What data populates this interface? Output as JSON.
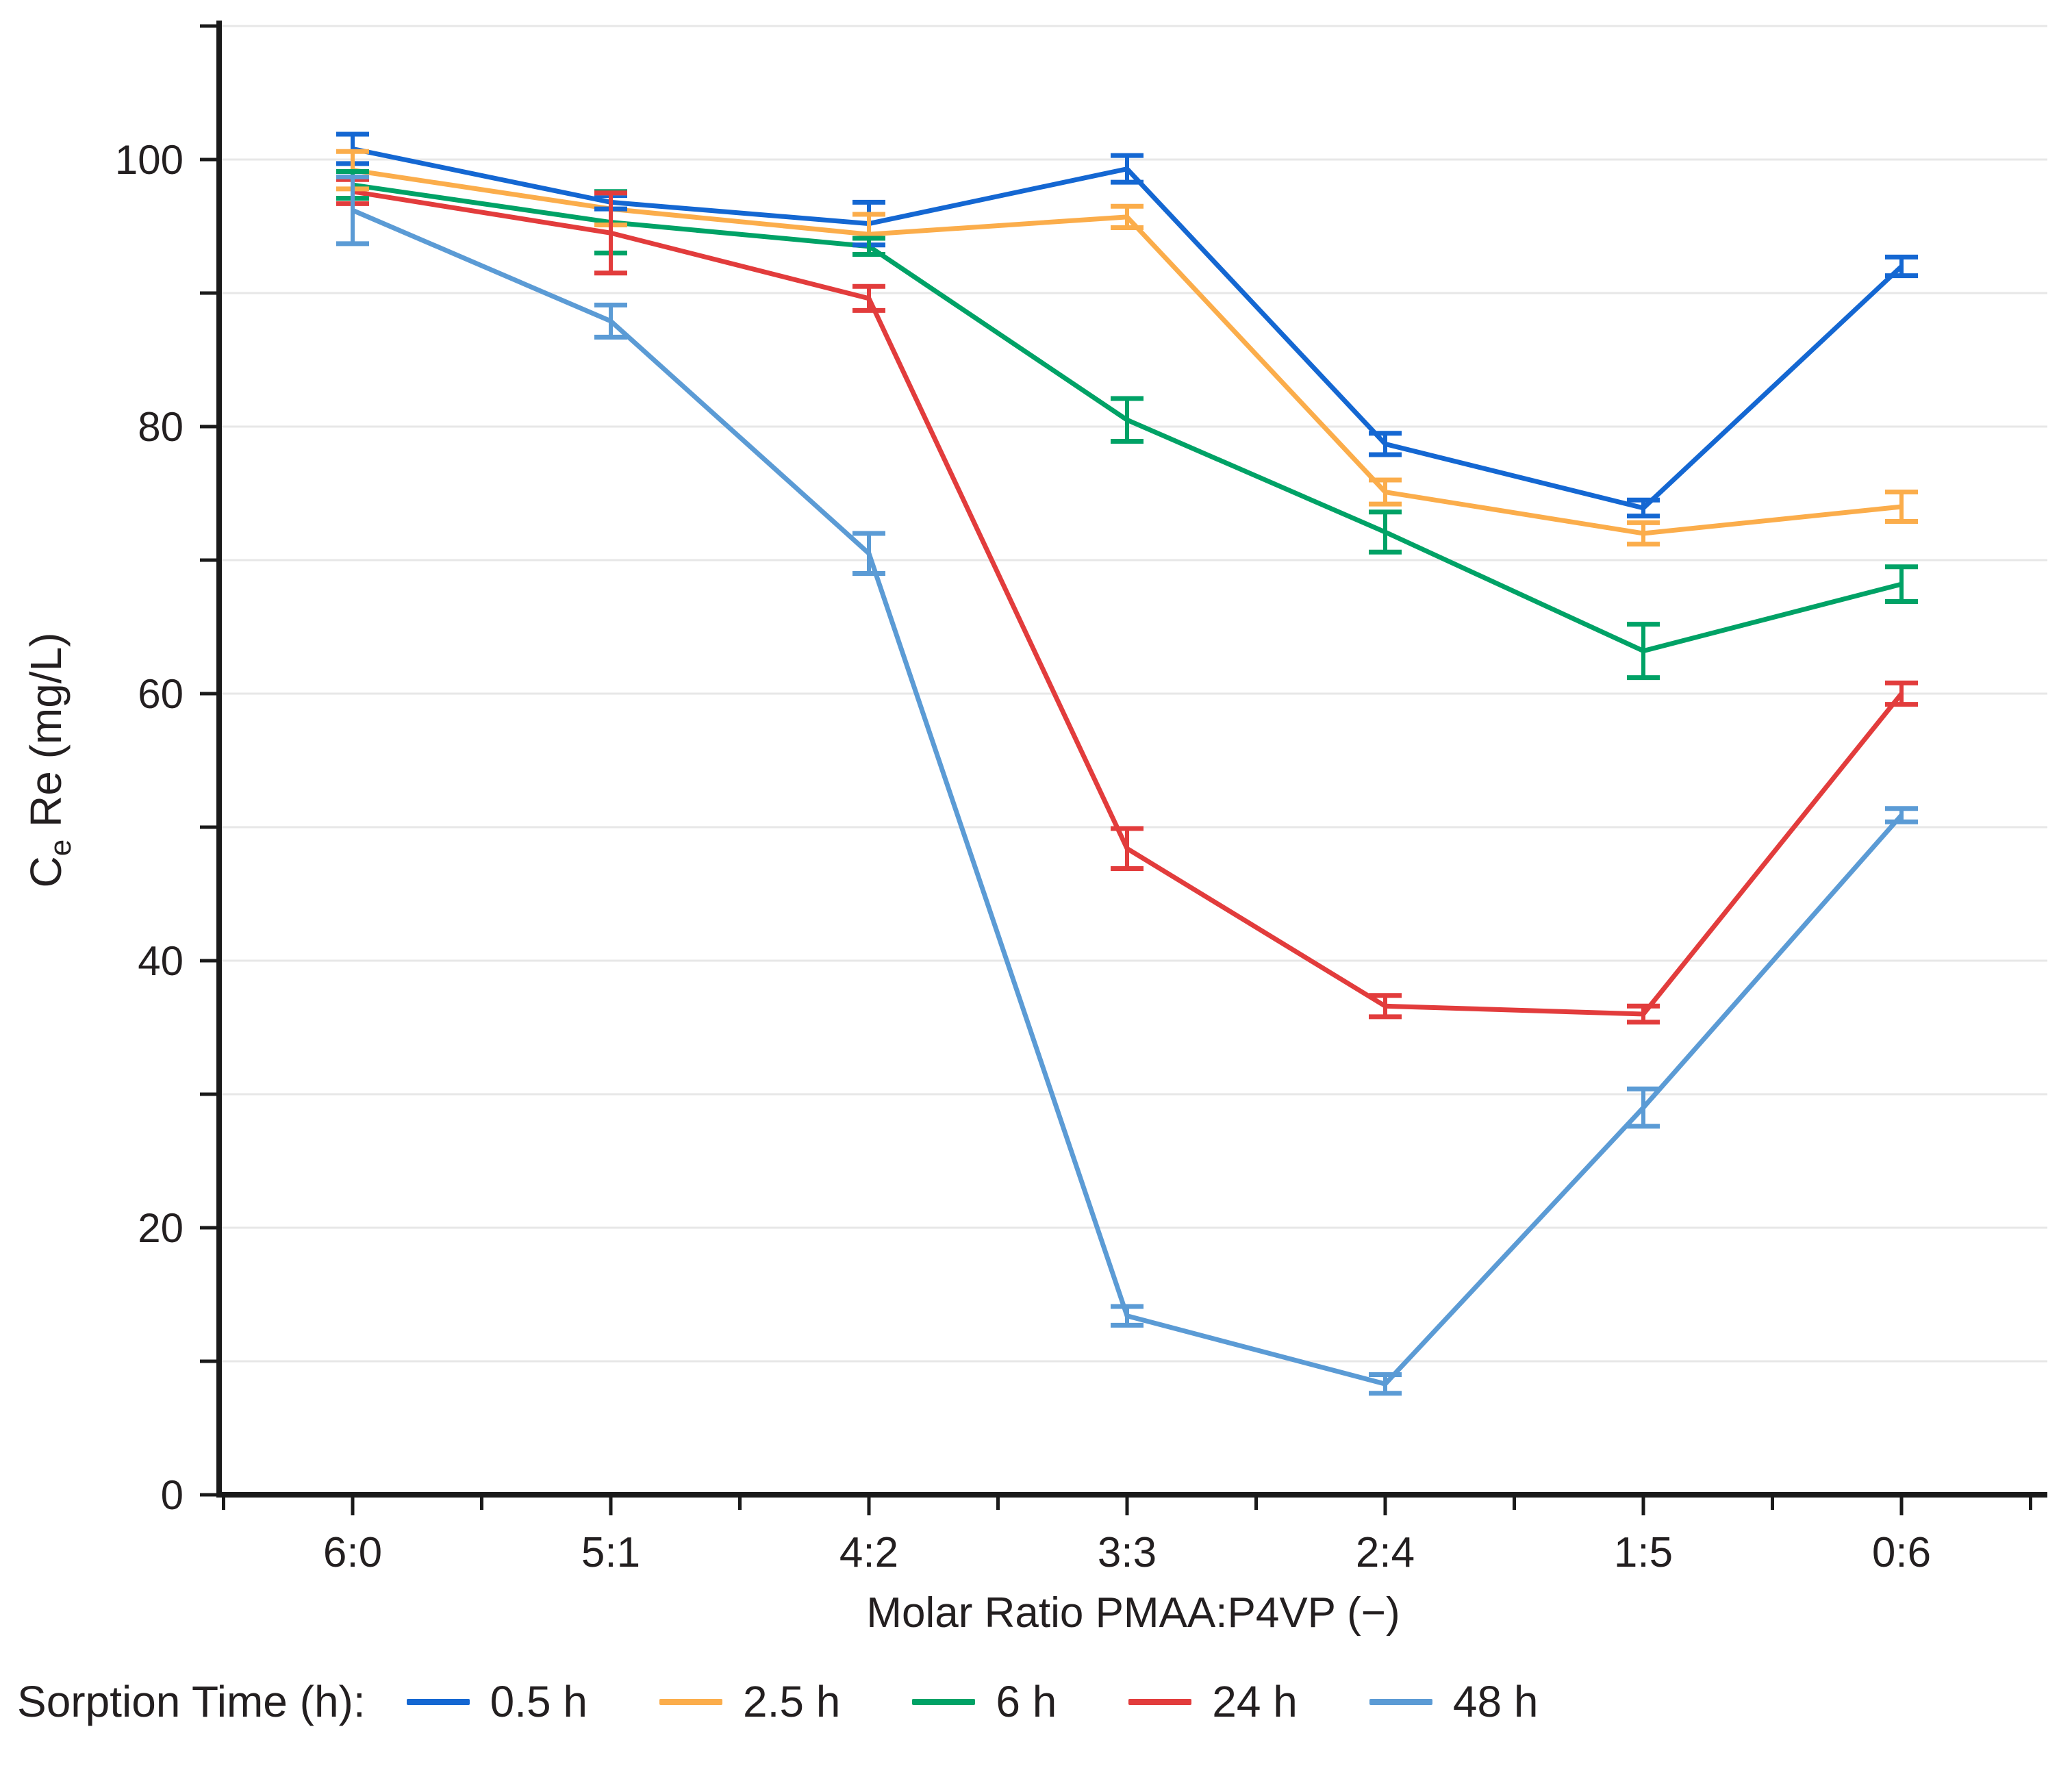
{
  "figure": {
    "x_axis_title": "Molar Ratio PMAA:P4VP (−)",
    "y_axis_title": {
      "prefix": "C",
      "subscript": "e",
      "rest": " Re (mg/L)"
    }
  },
  "legend": {
    "title": "Sorption Time (h):",
    "position": "bottom",
    "items": [
      {
        "label": "0.5 h",
        "color": "#1467D2"
      },
      {
        "label": "2.5 h",
        "color": "#FBAD4B"
      },
      {
        "label": "6 h",
        "color": "#00A266"
      },
      {
        "label": "24 h",
        "color": "#E23C3C"
      },
      {
        "label": "48 h",
        "color": "#5B9BD5"
      }
    ]
  },
  "chart_data": {
    "type": "line",
    "title": "",
    "categories": [
      "6:0",
      "5:1",
      "4:2",
      "3:3",
      "2:4",
      "1:5",
      "0:6"
    ],
    "xlabel": "Molar Ratio PMAA:P4VP (−)",
    "ylabel": "Ce Re (mg/L)",
    "ylim": [
      0,
      110
    ],
    "ytick_step_labeled": 20,
    "grid_step": 10,
    "grid": "horizontal",
    "legend_position": "bottom",
    "error_bars": true,
    "series": [
      {
        "name": "0.5 h",
        "color": "#1467D2",
        "values": [
          100.8,
          96.8,
          95.2,
          99.3,
          78.7,
          73.9,
          92.0
        ],
        "errors": [
          1.1,
          0.5,
          1.6,
          1.0,
          0.8,
          0.6,
          0.7
        ]
      },
      {
        "name": "2.5 h",
        "color": "#FBAD4B",
        "values": [
          99.2,
          96.3,
          94.4,
          95.7,
          75.1,
          72.0,
          74.0
        ],
        "errors": [
          1.4,
          1.2,
          1.5,
          0.8,
          0.9,
          0.8,
          1.1
        ]
      },
      {
        "name": "6 h",
        "color": "#00A266",
        "values": [
          98.1,
          95.3,
          93.5,
          80.5,
          72.1,
          63.2,
          68.2
        ],
        "errors": [
          1.0,
          2.3,
          0.6,
          1.6,
          1.5,
          2.0,
          1.3
        ]
      },
      {
        "name": "24 h",
        "color": "#E23C3C",
        "values": [
          97.6,
          94.5,
          89.6,
          48.4,
          36.6,
          36.0,
          60.0
        ],
        "errors": [
          0.9,
          3.0,
          0.9,
          1.5,
          0.8,
          0.6,
          0.8
        ]
      },
      {
        "name": "48 h",
        "color": "#5B9BD5",
        "values": [
          96.2,
          87.9,
          70.5,
          13.4,
          8.3,
          29.0,
          50.9
        ],
        "errors": [
          2.5,
          1.2,
          1.5,
          0.7,
          0.7,
          1.4,
          0.5
        ]
      }
    ]
  },
  "style": {
    "axis_color": "#1a1a1a",
    "grid_color": "#e7e7e7",
    "text_color": "#231f20",
    "background": "#ffffff"
  }
}
